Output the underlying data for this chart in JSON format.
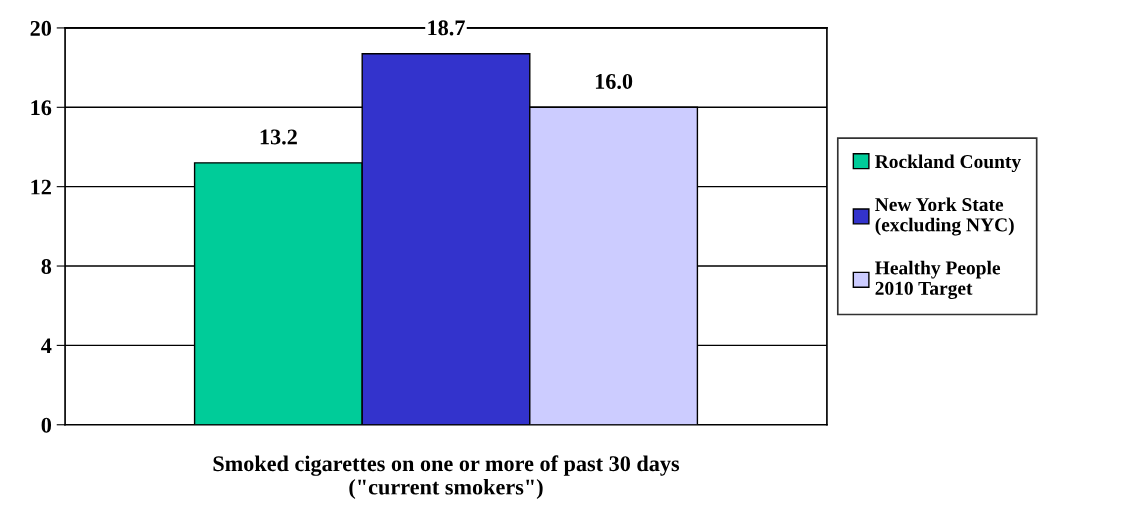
{
  "chart_data": {
    "type": "bar",
    "categories": [
      "Smoked cigarettes on one or more of past 30 days\n(\"current smokers\")"
    ],
    "series": [
      {
        "name": "Rockland County",
        "color": "#00cc99",
        "values": [
          13.2
        ]
      },
      {
        "name": "New York State\n(excluding NYC)",
        "color": "#3333cc",
        "values": [
          18.7
        ]
      },
      {
        "name": "Healthy People\n2010 Target",
        "color": "#ccccff",
        "values": [
          16.0
        ]
      }
    ],
    "value_labels": [
      [
        "13.2"
      ],
      [
        "18.7"
      ],
      [
        "16.0"
      ]
    ],
    "ylim": [
      0,
      20
    ],
    "yticks": [
      0,
      4,
      8,
      12,
      16,
      20
    ],
    "grid": "y",
    "legend": "right"
  }
}
